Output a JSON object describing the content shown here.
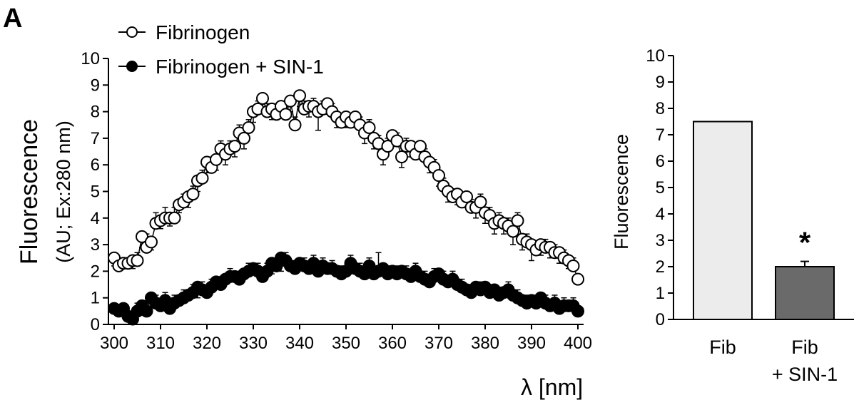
{
  "panel_label": "A",
  "chart_data": [
    {
      "type": "scatter",
      "ylabel_line1": "Fluorescence",
      "ylabel_line2": "(AU; Ex:280 nm)",
      "xlabel": "λ [nm]",
      "xlim": [
        300,
        400
      ],
      "ylim": [
        0,
        10
      ],
      "x_ticks": [
        "300",
        "310",
        "320",
        "330",
        "340",
        "350",
        "360",
        "370",
        "380",
        "390",
        "400"
      ],
      "y_ticks": [
        "0",
        "1",
        "2",
        "3",
        "4",
        "5",
        "6",
        "7",
        "8",
        "9",
        "10"
      ],
      "legend": [
        {
          "label": "Fibrinogen",
          "marker": "open-circle"
        },
        {
          "label": "Fibrinogen + SIN-1",
          "marker": "filled-circle"
        }
      ],
      "series": [
        {
          "name": "Fibrinogen",
          "marker": "open",
          "x": [
            300,
            301,
            302,
            303,
            304,
            305,
            306,
            307,
            308,
            309,
            310,
            311,
            312,
            313,
            314,
            315,
            316,
            317,
            318,
            319,
            320,
            321,
            322,
            323,
            324,
            325,
            326,
            327,
            328,
            329,
            330,
            331,
            332,
            333,
            334,
            335,
            336,
            337,
            338,
            339,
            340,
            341,
            342,
            343,
            344,
            345,
            346,
            347,
            348,
            349,
            350,
            351,
            352,
            353,
            354,
            355,
            356,
            357,
            358,
            359,
            360,
            361,
            362,
            363,
            364,
            365,
            366,
            367,
            368,
            369,
            370,
            371,
            372,
            373,
            374,
            375,
            376,
            377,
            378,
            379,
            380,
            381,
            382,
            383,
            384,
            385,
            386,
            387,
            388,
            389,
            390,
            391,
            392,
            393,
            394,
            395,
            396,
            397,
            398,
            399,
            400
          ],
          "y": [
            2.5,
            2.2,
            2.3,
            2.3,
            2.4,
            2.4,
            3.3,
            2.9,
            3.1,
            3.8,
            3.9,
            4.0,
            4.0,
            4.0,
            4.5,
            4.6,
            4.8,
            4.9,
            5.4,
            5.5,
            6.1,
            5.9,
            6.2,
            6.6,
            6.4,
            6.6,
            6.7,
            7.2,
            7.0,
            7.4,
            8.0,
            8.1,
            8.5,
            8.0,
            8.1,
            7.9,
            8.2,
            7.9,
            8.4,
            7.5,
            8.6,
            8.1,
            8.2,
            8.2,
            8.0,
            8.1,
            8.3,
            8.0,
            7.8,
            7.6,
            7.8,
            7.6,
            7.8,
            7.5,
            7.2,
            7.4,
            7.0,
            6.8,
            6.4,
            6.7,
            7.1,
            6.9,
            6.3,
            6.7,
            6.7,
            6.4,
            6.7,
            6.3,
            6.1,
            5.9,
            5.6,
            5.2,
            5.0,
            4.8,
            4.9,
            4.6,
            4.8,
            4.4,
            4.4,
            4.6,
            4.2,
            4.1,
            3.8,
            3.9,
            3.8,
            3.7,
            3.5,
            3.9,
            3.2,
            3.1,
            3.0,
            2.8,
            3.0,
            2.9,
            2.9,
            2.7,
            2.7,
            2.5,
            2.4,
            2.2,
            1.7
          ],
          "err": [
            0.3,
            0.3,
            0.2,
            0.2,
            0.3,
            0.3,
            0.4,
            0.5,
            0.3,
            0.4,
            0.3,
            0.4,
            0.3,
            0.4,
            0.3,
            0.3,
            0.4,
            0.3,
            0.4,
            0.3,
            0.4,
            0.3,
            0.4,
            0.3,
            0.4,
            0.3,
            0.4,
            0.3,
            0.4,
            0.3,
            0.4,
            0.3,
            0.4,
            0.3,
            0.4,
            0.3,
            0.4,
            0.3,
            0.4,
            0.3,
            0.4,
            0.3,
            0.4,
            0.3,
            0.7,
            0.3,
            0.4,
            0.3,
            0.4,
            0.3,
            0.4,
            0.3,
            0.4,
            0.3,
            0.4,
            0.3,
            0.4,
            0.3,
            0.4,
            0.3,
            0.4,
            0.3,
            0.4,
            0.3,
            0.4,
            0.3,
            0.4,
            0.3,
            0.4,
            0.3,
            0.4,
            0.3,
            0.4,
            0.3,
            0.4,
            0.3,
            0.4,
            0.3,
            0.4,
            0.3,
            0.4,
            0.3,
            0.4,
            0.3,
            0.4,
            0.3,
            0.5,
            0.3,
            0.4,
            0.3,
            0.6,
            0.3,
            0.4,
            0.3,
            0.4,
            0.3,
            0.4,
            0.3,
            0.3,
            0.3,
            0.2
          ]
        },
        {
          "name": "Fibrinogen + SIN-1",
          "marker": "filled",
          "x": [
            300,
            301,
            302,
            303,
            304,
            305,
            306,
            307,
            308,
            309,
            310,
            311,
            312,
            313,
            314,
            315,
            316,
            317,
            318,
            319,
            320,
            321,
            322,
            323,
            324,
            325,
            326,
            327,
            328,
            329,
            330,
            331,
            332,
            333,
            334,
            335,
            336,
            337,
            338,
            339,
            340,
            341,
            342,
            343,
            344,
            345,
            346,
            347,
            348,
            349,
            350,
            351,
            352,
            353,
            354,
            355,
            356,
            357,
            358,
            359,
            360,
            361,
            362,
            363,
            364,
            365,
            366,
            367,
            368,
            369,
            370,
            371,
            372,
            373,
            374,
            375,
            376,
            377,
            378,
            379,
            380,
            381,
            382,
            383,
            384,
            385,
            386,
            387,
            388,
            389,
            390,
            391,
            392,
            393,
            394,
            395,
            396,
            397,
            398,
            399,
            400
          ],
          "y": [
            0.6,
            0.5,
            0.6,
            0.3,
            0.2,
            0.5,
            0.7,
            0.5,
            1.0,
            0.8,
            0.7,
            0.9,
            0.6,
            0.8,
            0.9,
            1.0,
            1.1,
            1.2,
            1.4,
            1.3,
            1.2,
            1.4,
            1.6,
            1.5,
            1.7,
            1.8,
            1.8,
            1.7,
            1.9,
            2.0,
            2.1,
            2.0,
            1.8,
            2.0,
            2.3,
            2.2,
            2.5,
            2.4,
            2.2,
            2.1,
            2.3,
            2.2,
            2.1,
            2.3,
            2.0,
            2.2,
            2.1,
            2.1,
            2.0,
            1.9,
            2.0,
            2.3,
            2.1,
            2.0,
            1.9,
            2.2,
            1.9,
            2.0,
            2.1,
            1.9,
            2.0,
            1.9,
            2.0,
            1.9,
            1.8,
            2.0,
            1.8,
            1.7,
            1.6,
            1.8,
            1.9,
            1.7,
            1.6,
            1.7,
            1.5,
            1.4,
            1.3,
            1.2,
            1.4,
            1.3,
            1.4,
            1.2,
            1.3,
            1.1,
            1.2,
            1.3,
            1.1,
            1.0,
            0.9,
            0.8,
            0.9,
            0.8,
            1.0,
            0.8,
            0.7,
            0.8,
            0.6,
            0.7,
            0.7,
            0.7,
            0.5
          ],
          "err": [
            0.2,
            0.2,
            0.2,
            0.2,
            0.2,
            0.3,
            0.2,
            0.3,
            0.2,
            0.3,
            0.2,
            0.3,
            0.2,
            0.3,
            0.2,
            0.3,
            0.2,
            0.3,
            0.4,
            0.3,
            0.2,
            0.3,
            0.2,
            0.3,
            0.2,
            0.3,
            0.2,
            0.3,
            0.2,
            0.3,
            0.2,
            0.3,
            0.2,
            0.3,
            0.4,
            0.3,
            0.5,
            0.3,
            0.2,
            0.3,
            0.2,
            0.3,
            0.2,
            0.3,
            0.2,
            0.3,
            0.2,
            0.3,
            0.2,
            0.3,
            0.2,
            0.3,
            0.2,
            0.3,
            0.2,
            0.3,
            0.2,
            0.7,
            0.2,
            0.3,
            0.2,
            0.3,
            0.2,
            0.3,
            0.2,
            0.3,
            0.2,
            0.3,
            0.2,
            0.3,
            0.2,
            0.3,
            0.2,
            0.3,
            0.2,
            0.3,
            0.2,
            0.3,
            0.2,
            0.3,
            0.2,
            0.3,
            0.2,
            0.3,
            0.2,
            0.3,
            0.2,
            0.3,
            0.2,
            0.3,
            0.2,
            0.3,
            0.2,
            0.3,
            0.2,
            0.3,
            0.2,
            0.3,
            0.2,
            0.3,
            0.2
          ]
        }
      ]
    },
    {
      "type": "bar",
      "ylabel": "Fluorescence",
      "ylim": [
        0,
        10
      ],
      "y_ticks": [
        "0",
        "1",
        "2",
        "3",
        "4",
        "5",
        "6",
        "7",
        "8",
        "9",
        "10"
      ],
      "categories": [
        {
          "line1": "Fib",
          "line2": ""
        },
        {
          "line1": "Fib",
          "line2": "+ SIN-1"
        }
      ],
      "values": [
        7.5,
        2.0
      ],
      "errors": [
        0,
        0.2
      ],
      "bar_colors": [
        "#ececec",
        "#6a6a6a"
      ],
      "annotations": [
        {
          "bar": 1,
          "text": "*"
        }
      ]
    }
  ]
}
